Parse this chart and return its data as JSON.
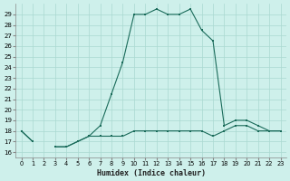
{
  "xlabel": "Humidex (Indice chaleur)",
  "line1_x": [
    0,
    1,
    2,
    3,
    4,
    5,
    6,
    7,
    8,
    9,
    10,
    11,
    12,
    13,
    14,
    15,
    16,
    17,
    18,
    19,
    20,
    21,
    22,
    23
  ],
  "line1_y": [
    18,
    17,
    null,
    16.5,
    16.5,
    17,
    17.5,
    17.5,
    17.5,
    17.5,
    18,
    18,
    18,
    18,
    18,
    18,
    18,
    17.5,
    18,
    18.5,
    18.5,
    18,
    18,
    18
  ],
  "line2_x": [
    0,
    1,
    2,
    3,
    4,
    5,
    6,
    7,
    8,
    9,
    10,
    11,
    12,
    13,
    14,
    15,
    16,
    17,
    18,
    19,
    20,
    21,
    22,
    23
  ],
  "line2_y": [
    18,
    17,
    null,
    16.5,
    16.5,
    17,
    17.5,
    18.5,
    21.5,
    24.5,
    29,
    29,
    29.5,
    29,
    29,
    29.5,
    27.5,
    26.5,
    18.5,
    19,
    19,
    18.5,
    18,
    18
  ],
  "color": "#1a6b5a",
  "bg_color": "#cef0eb",
  "grid_color": "#aad8d0",
  "ylim": [
    15.5,
    30
  ],
  "xlim": [
    -0.5,
    23.5
  ],
  "yticks": [
    16,
    17,
    18,
    19,
    20,
    21,
    22,
    23,
    24,
    25,
    26,
    27,
    28,
    29
  ],
  "xticks": [
    0,
    1,
    2,
    3,
    4,
    5,
    6,
    7,
    8,
    9,
    10,
    11,
    12,
    13,
    14,
    15,
    16,
    17,
    18,
    19,
    20,
    21,
    22,
    23
  ]
}
